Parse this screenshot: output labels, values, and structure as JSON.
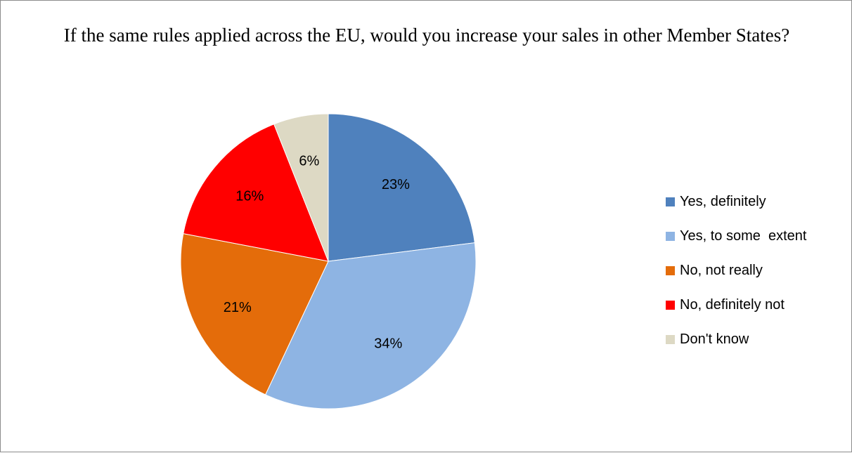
{
  "chart_data": {
    "type": "pie",
    "title": "If the same rules applied across the EU, would you increase your sales in other Member States?",
    "categories": [
      "Yes, definitely",
      "Yes, to some  extent",
      "No, not really",
      "No, definitely not",
      "Don't know"
    ],
    "values": [
      23,
      34,
      21,
      16,
      6
    ],
    "data_labels": [
      "23%",
      "34%",
      "21%",
      "16%",
      "6%"
    ],
    "colors": [
      "#4f81bd",
      "#8eb4e3",
      "#e46c0a",
      "#ff0000",
      "#ddd9c4"
    ],
    "legend_position": "right",
    "start_angle": "12 o'clock, clockwise"
  }
}
